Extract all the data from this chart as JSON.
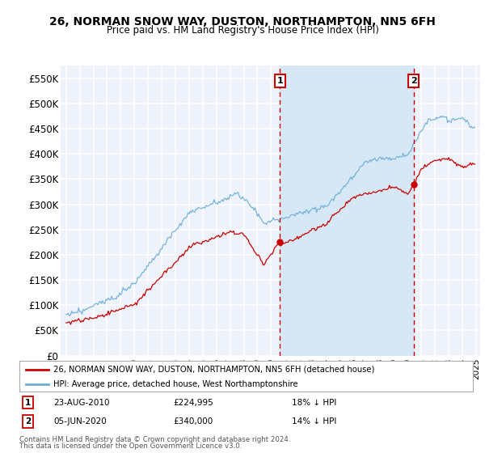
{
  "title": "26, NORMAN SNOW WAY, DUSTON, NORTHAMPTON, NN5 6FH",
  "subtitle": "Price paid vs. HM Land Registry's House Price Index (HPI)",
  "ylim": [
    0,
    575000
  ],
  "yticks": [
    0,
    50000,
    100000,
    150000,
    200000,
    250000,
    300000,
    350000,
    400000,
    450000,
    500000,
    550000
  ],
  "ytick_labels": [
    "£0",
    "£50K",
    "£100K",
    "£150K",
    "£200K",
    "£250K",
    "£300K",
    "£350K",
    "£400K",
    "£450K",
    "£500K",
    "£550K"
  ],
  "hpi_color": "#6baed6",
  "hpi_fill_color": "#d6e8f5",
  "price_color": "#cc0000",
  "dashed_color": "#cc0000",
  "bg_color": "#eef3fb",
  "grid_color": "#ffffff",
  "t1_year": 2010.64,
  "t1_price": 224995,
  "t2_year": 2020.42,
  "t2_price": 340000,
  "legend_entry1": "26, NORMAN SNOW WAY, DUSTON, NORTHAMPTON, NN5 6FH (detached house)",
  "legend_entry2": "HPI: Average price, detached house, West Northamptonshire",
  "footer1": "Contains HM Land Registry data © Crown copyright and database right 2024.",
  "footer2": "This data is licensed under the Open Government Licence v3.0.",
  "note1_label": "1",
  "note1_date": "23-AUG-2010",
  "note1_price": "£224,995",
  "note1_hpi": "18% ↓ HPI",
  "note2_label": "2",
  "note2_date": "05-JUN-2020",
  "note2_price": "£340,000",
  "note2_hpi": "14% ↓ HPI"
}
